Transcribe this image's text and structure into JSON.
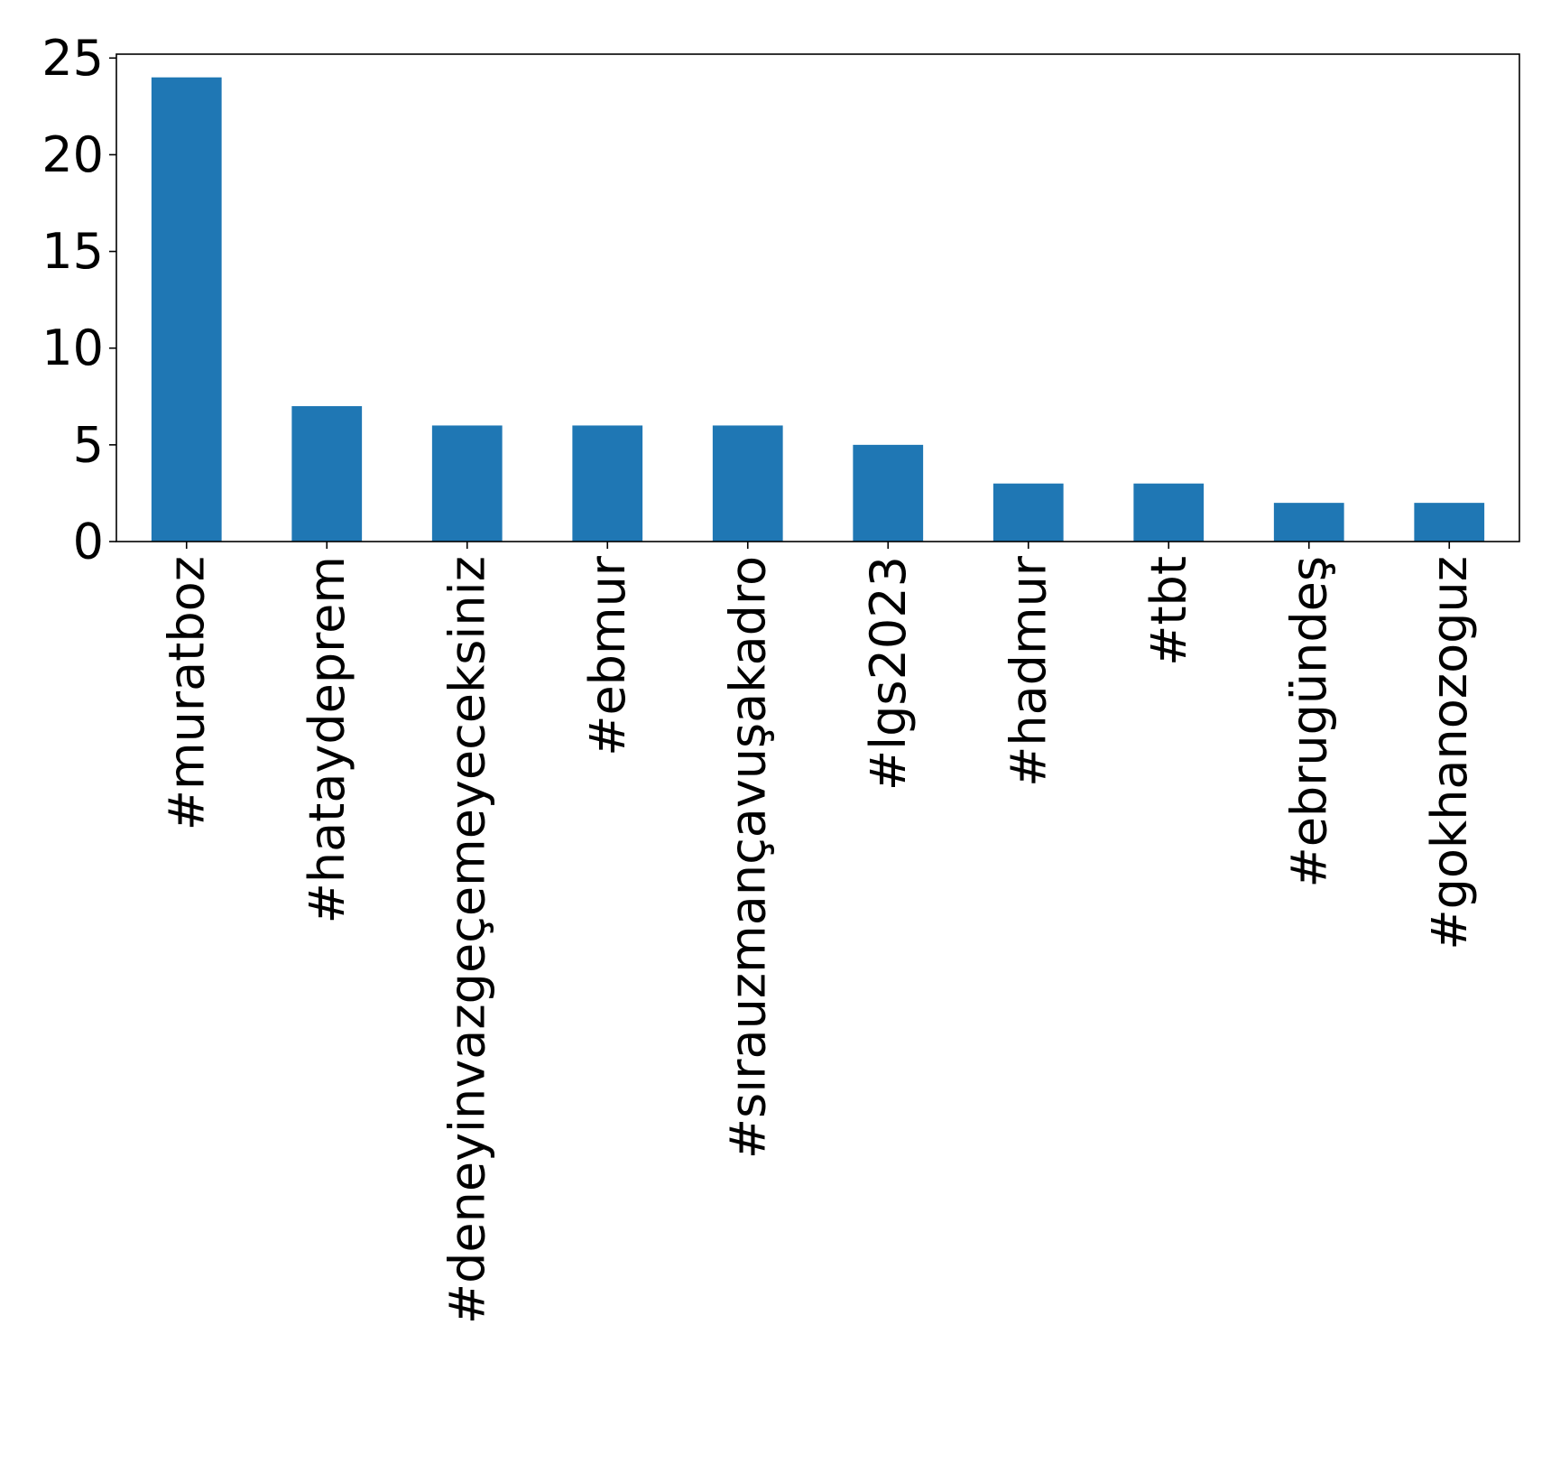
{
  "chart_data": {
    "type": "bar",
    "categories": [
      "#muratboz",
      "#hataydeprem",
      "#deneyinvazgeçemeyeceksiniz",
      "#ebmur",
      "#sırauzmançavuşakadro",
      "#lgs2023",
      "#hadmur",
      "#tbt",
      "#ebrugündeş",
      "#gokhanozoguz"
    ],
    "values": [
      24,
      7,
      6,
      6,
      6,
      5,
      3,
      3,
      2,
      2
    ],
    "ylim": [
      0,
      25.2
    ],
    "yticks": [
      0,
      5,
      10,
      15,
      20,
      25
    ],
    "ytick_labels": [
      "0",
      "5",
      "10",
      "15",
      "20",
      "25"
    ],
    "bar_color": "#1f77b4",
    "grid": false,
    "legend": "none"
  }
}
